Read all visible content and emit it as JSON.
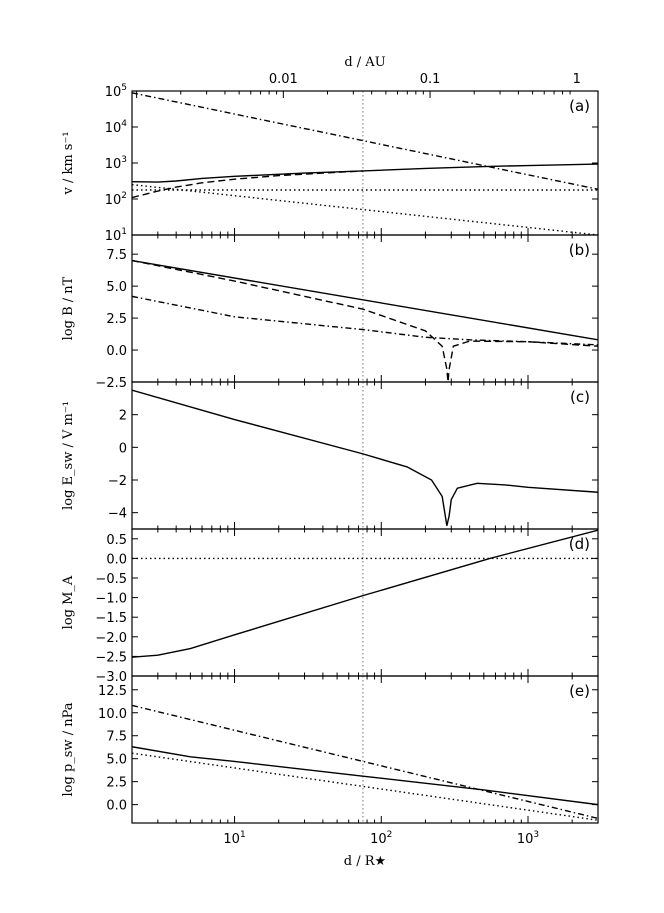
{
  "chart_data": {
    "type": "line",
    "x_axis": {
      "label": "d  /  R★",
      "scale": "log",
      "range": [
        2,
        3000
      ],
      "ticks": [
        {
          "value": 10,
          "label": "10¹"
        },
        {
          "value": 100,
          "label": "10²"
        },
        {
          "value": 1000,
          "label": "10³"
        }
      ]
    },
    "top_axis": {
      "label": "d  /  AU",
      "ticks": [
        {
          "value_rstar": 21.5,
          "label": "0.01"
        },
        {
          "value_rstar": 215,
          "label": "0.1"
        },
        {
          "value_rstar": 2150,
          "label": "1"
        }
      ]
    },
    "vertical_reference_x": 75,
    "panels": [
      {
        "tag": "(a)",
        "ylabel": "v  /  km s⁻¹",
        "yscale": "log",
        "ylim": [
          1,
          5
        ],
        "yticks": [
          {
            "value": 1,
            "label": "10¹"
          },
          {
            "value": 2,
            "label": "10²"
          },
          {
            "value": 3,
            "label": "10³"
          },
          {
            "value": 4,
            "label": "10⁴"
          },
          {
            "value": 5,
            "label": "10⁵"
          }
        ],
        "series": [
          {
            "style": "solid",
            "x": [
              2,
              3,
              4,
              6,
              10,
              30,
              75,
              200,
              500,
              1000,
              3000
            ],
            "y": [
              2.48,
              2.47,
              2.5,
              2.57,
              2.63,
              2.72,
              2.78,
              2.85,
              2.9,
              2.93,
              2.97
            ]
          },
          {
            "style": "dashed",
            "x": [
              2,
              3,
              4,
              6,
              10,
              20,
              40,
              75
            ],
            "y": [
              2.04,
              2.22,
              2.33,
              2.45,
              2.55,
              2.65,
              2.72,
              2.78
            ]
          },
          {
            "style": "dashdot",
            "x": [
              2,
              3000
            ],
            "y": [
              4.95,
              2.27
            ]
          },
          {
            "style": "dotted",
            "x": [
              2,
              3000
            ],
            "y": [
              2.4,
              1.0
            ]
          },
          {
            "style": "dotted",
            "x": [
              2,
              3000
            ],
            "y": [
              2.25,
              2.25
            ]
          }
        ]
      },
      {
        "tag": "(b)",
        "ylabel": "log B  /  nT",
        "yscale": "linear",
        "ylim": [
          -2.5,
          9.0
        ],
        "yticks": [
          {
            "value": -2.5,
            "label": "−2.5"
          },
          {
            "value": 0.0,
            "label": "0.0"
          },
          {
            "value": 2.5,
            "label": "2.5"
          },
          {
            "value": 5.0,
            "label": "5.0"
          },
          {
            "value": 7.5,
            "label": "7.5"
          }
        ],
        "series": [
          {
            "style": "solid",
            "x": [
              2,
              3000
            ],
            "y": [
              7.0,
              0.8
            ]
          },
          {
            "style": "dashed",
            "x": [
              2,
              10,
              75,
              200,
              260,
              280,
              285,
              290,
              310,
              400,
              1000,
              3000
            ],
            "y": [
              7.0,
              5.4,
              3.2,
              1.5,
              0.3,
              -1.5,
              -2.5,
              -1.5,
              0.3,
              0.7,
              0.65,
              0.3
            ]
          },
          {
            "style": "dashdot",
            "x": [
              2,
              10,
              75,
              200,
              400,
              1000,
              3000
            ],
            "y": [
              4.2,
              2.6,
              1.6,
              1.0,
              0.8,
              0.65,
              0.4
            ]
          }
        ]
      },
      {
        "tag": "(c)",
        "ylabel": "log E_sw  /  V m⁻¹",
        "yscale": "linear",
        "ylim": [
          -5.0,
          4.0
        ],
        "yticks": [
          {
            "value": -4,
            "label": "−4"
          },
          {
            "value": -2,
            "label": "−2"
          },
          {
            "value": 0,
            "label": "0"
          },
          {
            "value": 2,
            "label": "2"
          }
        ],
        "series": [
          {
            "style": "solid",
            "x": [
              2,
              10,
              75,
              150,
              220,
              260,
              280,
              290,
              300,
              330,
              450,
              700,
              1000,
              3000
            ],
            "y": [
              3.5,
              1.7,
              -0.4,
              -1.2,
              -2.0,
              -3.0,
              -4.8,
              -4.2,
              -3.2,
              -2.5,
              -2.2,
              -2.3,
              -2.45,
              -2.75
            ]
          }
        ]
      },
      {
        "tag": "(d)",
        "ylabel": "log M_A",
        "yscale": "linear",
        "ylim": [
          -3.0,
          0.75
        ],
        "yticks": [
          {
            "value": -3.0,
            "label": "−3.0"
          },
          {
            "value": -2.5,
            "label": "−2.5"
          },
          {
            "value": -2.0,
            "label": "−2.0"
          },
          {
            "value": -1.5,
            "label": "−1.5"
          },
          {
            "value": -1.0,
            "label": "−1.0"
          },
          {
            "value": -0.5,
            "label": "−0.5"
          },
          {
            "value": 0.0,
            "label": "0.0"
          },
          {
            "value": 0.5,
            "label": "0.5"
          }
        ],
        "series": [
          {
            "style": "solid",
            "x": [
              2,
              3,
              5,
              10,
              75,
              550,
              3000
            ],
            "y": [
              -2.52,
              -2.47,
              -2.3,
              -1.95,
              -0.95,
              0.0,
              0.72
            ]
          },
          {
            "style": "dotted",
            "x": [
              2,
              3000
            ],
            "y": [
              0.0,
              0.0
            ]
          }
        ]
      },
      {
        "tag": "(e)",
        "ylabel": "log p_sw  /  nPa",
        "yscale": "linear",
        "ylim": [
          -2.0,
          14.0
        ],
        "yticks": [
          {
            "value": 0.0,
            "label": "0.0"
          },
          {
            "value": 2.5,
            "label": "2.5"
          },
          {
            "value": 5.0,
            "label": "5.0"
          },
          {
            "value": 7.5,
            "label": "7.5"
          },
          {
            "value": 10.0,
            "label": "10.0"
          },
          {
            "value": 12.5,
            "label": "12.5"
          }
        ],
        "series": [
          {
            "style": "solid",
            "x": [
              2,
              5,
              10,
              75,
              500,
              3000
            ],
            "y": [
              6.3,
              5.2,
              4.7,
              3.1,
              1.6,
              0.0
            ]
          },
          {
            "style": "dashdot",
            "x": [
              2,
              3000
            ],
            "y": [
              10.8,
              -1.5
            ]
          },
          {
            "style": "dotted",
            "x": [
              2,
              3000
            ],
            "y": [
              5.6,
              -1.7
            ]
          }
        ]
      }
    ]
  }
}
